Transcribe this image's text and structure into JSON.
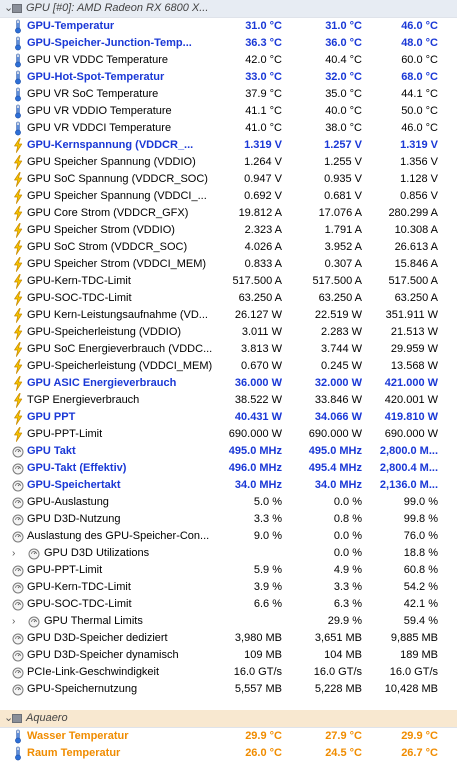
{
  "groups": [
    {
      "title": "GPU [#0]: AMD Radeon RX 6800 X...",
      "rows": [
        {
          "label": "GPU-Temperatur",
          "v1": "31.0 °C",
          "v2": "31.0 °C",
          "v3": "46.0 °C",
          "icon": "thermometer-icon",
          "hl": true
        },
        {
          "label": "GPU-Speicher-Junction-Temp...",
          "v1": "36.3 °C",
          "v2": "36.0 °C",
          "v3": "48.0 °C",
          "icon": "thermometer-icon",
          "hl": true
        },
        {
          "label": "GPU VR VDDC Temperature",
          "v1": "42.0 °C",
          "v2": "40.4 °C",
          "v3": "60.0 °C",
          "icon": "thermometer-icon"
        },
        {
          "label": "GPU-Hot-Spot-Temperatur",
          "v1": "33.0 °C",
          "v2": "32.0 °C",
          "v3": "68.0 °C",
          "icon": "thermometer-icon",
          "hl": true
        },
        {
          "label": "GPU VR SoC Temperature",
          "v1": "37.9 °C",
          "v2": "35.0 °C",
          "v3": "44.1 °C",
          "icon": "thermometer-icon"
        },
        {
          "label": "GPU VR VDDIO Temperature",
          "v1": "41.1 °C",
          "v2": "40.0 °C",
          "v3": "50.0 °C",
          "icon": "thermometer-icon"
        },
        {
          "label": "GPU VR VDDCI Temperature",
          "v1": "41.0 °C",
          "v2": "38.0 °C",
          "v3": "46.0 °C",
          "icon": "thermometer-icon"
        },
        {
          "label": "GPU-Kernspannung (VDDCR_...",
          "v1": "1.319 V",
          "v2": "1.257 V",
          "v3": "1.319 V",
          "icon": "lightning-icon",
          "hl": true
        },
        {
          "label": "GPU Speicher Spannung (VDDIO)",
          "v1": "1.264 V",
          "v2": "1.255 V",
          "v3": "1.356 V",
          "icon": "lightning-icon"
        },
        {
          "label": "GPU SoC Spannung (VDDCR_SOC)",
          "v1": "0.947 V",
          "v2": "0.935 V",
          "v3": "1.128 V",
          "icon": "lightning-icon"
        },
        {
          "label": "GPU Speicher Spannung (VDDCI_...",
          "v1": "0.692 V",
          "v2": "0.681 V",
          "v3": "0.856 V",
          "icon": "lightning-icon"
        },
        {
          "label": "GPU Core Strom (VDDCR_GFX)",
          "v1": "19.812 A",
          "v2": "17.076 A",
          "v3": "280.299 A",
          "icon": "lightning-icon"
        },
        {
          "label": "GPU Speicher Strom (VDDIO)",
          "v1": "2.323 A",
          "v2": "1.791 A",
          "v3": "10.308 A",
          "icon": "lightning-icon"
        },
        {
          "label": "GPU SoC Strom (VDDCR_SOC)",
          "v1": "4.026 A",
          "v2": "3.952 A",
          "v3": "26.613 A",
          "icon": "lightning-icon"
        },
        {
          "label": "GPU Speicher Strom (VDDCI_MEM)",
          "v1": "0.833 A",
          "v2": "0.307 A",
          "v3": "15.846 A",
          "icon": "lightning-icon"
        },
        {
          "label": "GPU-Kern-TDC-Limit",
          "v1": "517.500 A",
          "v2": "517.500 A",
          "v3": "517.500 A",
          "icon": "lightning-icon"
        },
        {
          "label": "GPU-SOC-TDC-Limit",
          "v1": "63.250 A",
          "v2": "63.250 A",
          "v3": "63.250 A",
          "icon": "lightning-icon"
        },
        {
          "label": "GPU Kern-Leistungsaufnahme (VD...",
          "v1": "26.127 W",
          "v2": "22.519 W",
          "v3": "351.911 W",
          "icon": "lightning-icon"
        },
        {
          "label": "GPU-Speicherleistung (VDDIO)",
          "v1": "3.011 W",
          "v2": "2.283 W",
          "v3": "21.513 W",
          "icon": "lightning-icon"
        },
        {
          "label": "GPU SoC Energieverbrauch (VDDC...",
          "v1": "3.813 W",
          "v2": "3.744 W",
          "v3": "29.959 W",
          "icon": "lightning-icon"
        },
        {
          "label": "GPU-Speicherleistung (VDDCI_MEM)",
          "v1": "0.670 W",
          "v2": "0.245 W",
          "v3": "13.568 W",
          "icon": "lightning-icon"
        },
        {
          "label": "GPU ASIC Energieverbrauch",
          "v1": "36.000 W",
          "v2": "32.000 W",
          "v3": "421.000 W",
          "icon": "lightning-icon",
          "hl": true
        },
        {
          "label": "TGP Energieverbrauch",
          "v1": "38.522 W",
          "v2": "33.846 W",
          "v3": "420.001 W",
          "icon": "lightning-icon"
        },
        {
          "label": "GPU PPT",
          "v1": "40.431 W",
          "v2": "34.066 W",
          "v3": "419.810 W",
          "icon": "lightning-icon",
          "hl": true
        },
        {
          "label": "GPU-PPT-Limit",
          "v1": "690.000 W",
          "v2": "690.000 W",
          "v3": "690.000 W",
          "icon": "lightning-icon"
        },
        {
          "label": "GPU Takt",
          "v1": "495.0 MHz",
          "v2": "495.0 MHz",
          "v3": "2,800.0 M...",
          "icon": "clock-icon",
          "hl": true
        },
        {
          "label": "GPU-Takt (Effektiv)",
          "v1": "496.0 MHz",
          "v2": "495.4 MHz",
          "v3": "2,800.4 M...",
          "icon": "clock-icon",
          "hl": true
        },
        {
          "label": "GPU-Speichertakt",
          "v1": "34.0 MHz",
          "v2": "34.0 MHz",
          "v3": "2,136.0 M...",
          "icon": "clock-icon",
          "hl": true
        },
        {
          "label": "GPU-Auslastung",
          "v1": "5.0 %",
          "v2": "0.0 %",
          "v3": "99.0 %",
          "icon": "clock-icon"
        },
        {
          "label": "GPU D3D-Nutzung",
          "v1": "3.3 %",
          "v2": "0.8 %",
          "v3": "99.8 %",
          "icon": "clock-icon"
        },
        {
          "label": "Auslastung des GPU-Speicher-Con...",
          "v1": "9.0 %",
          "v2": "0.0 %",
          "v3": "76.0 %",
          "icon": "clock-icon"
        },
        {
          "label": "GPU D3D Utilizations",
          "v1": "",
          "v2": "0.0 %",
          "v3": "18.8 %",
          "icon": "clock-icon",
          "expand": "›",
          "ind": true
        },
        {
          "label": "GPU-PPT-Limit",
          "v1": "5.9 %",
          "v2": "4.9 %",
          "v3": "60.8 %",
          "icon": "clock-icon"
        },
        {
          "label": "GPU-Kern-TDC-Limit",
          "v1": "3.9 %",
          "v2": "3.3 %",
          "v3": "54.2 %",
          "icon": "clock-icon"
        },
        {
          "label": "GPU-SOC-TDC-Limit",
          "v1": "6.6 %",
          "v2": "6.3 %",
          "v3": "42.1 %",
          "icon": "clock-icon"
        },
        {
          "label": "GPU Thermal Limits",
          "v1": "",
          "v2": "29.9 %",
          "v3": "59.4 %",
          "icon": "clock-icon",
          "expand": "›",
          "ind": true
        },
        {
          "label": "GPU D3D-Speicher dediziert",
          "v1": "3,980 MB",
          "v2": "3,651 MB",
          "v3": "9,885 MB",
          "icon": "clock-icon"
        },
        {
          "label": "GPU D3D-Speicher dynamisch",
          "v1": "109 MB",
          "v2": "104 MB",
          "v3": "189 MB",
          "icon": "clock-icon"
        },
        {
          "label": "PCIe-Link-Geschwindigkeit",
          "v1": "16.0 GT/s",
          "v2": "16.0 GT/s",
          "v3": "16.0 GT/s",
          "icon": "clock-icon"
        },
        {
          "label": "GPU-Speichernutzung",
          "v1": "5,557 MB",
          "v2": "5,228 MB",
          "v3": "10,428 MB",
          "icon": "clock-icon"
        }
      ]
    },
    {
      "title": "Aquaero",
      "orange": true,
      "rows": [
        {
          "label": "Wasser Temperatur",
          "v1": "29.9 °C",
          "v2": "27.9 °C",
          "v3": "29.9 °C",
          "icon": "thermometer-icon",
          "or": true
        },
        {
          "label": "Raum Temperatur",
          "v1": "26.0 °C",
          "v2": "24.5 °C",
          "v3": "26.7 °C",
          "icon": "thermometer-icon",
          "or": true
        }
      ]
    }
  ],
  "colors": {
    "highlight": "#1a38d6",
    "orange": "#f08c00",
    "thermo": "#2d6fd6",
    "bolt": "#f5c400"
  }
}
